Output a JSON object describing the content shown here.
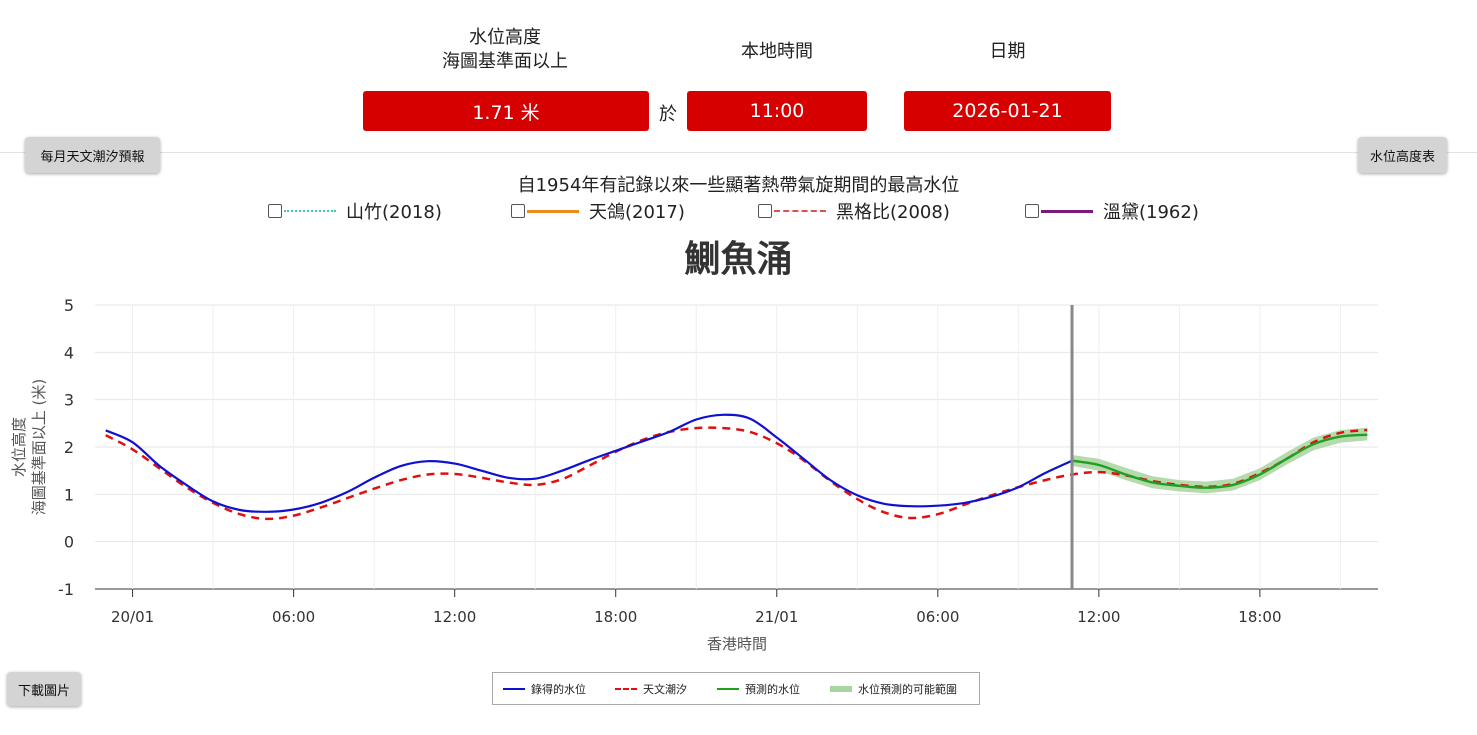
{
  "header": {
    "level_label_1": "水位高度",
    "level_label_2": "海圖基準面以上",
    "time_label": "本地時間",
    "date_label": "日期",
    "level_value": "1.71 米",
    "at": "於",
    "time_value": "11:00",
    "date_value": "2026-01-21"
  },
  "buttons": {
    "monthly": "每月天文潮汐預報",
    "table": "水位高度表",
    "download": "下載圖片"
  },
  "historical": {
    "title": "自1954年有記錄以來一些顯著熱帶氣旋期間的最高水位",
    "items": [
      {
        "label": "山竹(2018)",
        "color": "#40c4d0",
        "dash": "dotted"
      },
      {
        "label": "天鴿(2017)",
        "color": "#f08a1c",
        "dash": "solid"
      },
      {
        "label": "黑格比(2008)",
        "color": "#d9534f",
        "dash": "dashed"
      },
      {
        "label": "溫黛(1962)",
        "color": "#7a1a7a",
        "dash": "solid"
      }
    ]
  },
  "chart_data": {
    "type": "line",
    "title": "鰂魚涌",
    "xlabel": "香港時間",
    "ylabel_1": "水位高度",
    "ylabel_2": "海圖基準面以上 (米)",
    "ylim": [
      -1,
      5
    ],
    "xlim_hours": [
      -1.4,
      46.4
    ],
    "yticks": [
      -1,
      0,
      1,
      2,
      3,
      4,
      5
    ],
    "xticks": [
      {
        "h": 0,
        "label": "20/01"
      },
      {
        "h": 6,
        "label": "06:00"
      },
      {
        "h": 12,
        "label": "12:00"
      },
      {
        "h": 18,
        "label": "18:00"
      },
      {
        "h": 24,
        "label": "21/01"
      },
      {
        "h": 30,
        "label": "06:00"
      },
      {
        "h": 36,
        "label": "12:00"
      },
      {
        "h": 42,
        "label": "18:00"
      }
    ],
    "current_hour": 35,
    "legend": [
      "錄得的水位",
      "天文潮汐",
      "預測的水位",
      "水位預測的可能範圍"
    ],
    "colors": {
      "recorded": "#1010d0",
      "tide": "#e01010",
      "forecast": "#1fa01f",
      "range": "#a8d4a0"
    },
    "series": [
      {
        "name": "錄得的水位",
        "x": [
          -1,
          0,
          1,
          2,
          3,
          4,
          5,
          6,
          7,
          8,
          9,
          10,
          11,
          12,
          13,
          14,
          15,
          16,
          17,
          18,
          19,
          20,
          21,
          22,
          23,
          24,
          25,
          26,
          27,
          28,
          29,
          30,
          31,
          32,
          33,
          34,
          35
        ],
        "y": [
          2.35,
          2.1,
          1.6,
          1.2,
          0.85,
          0.67,
          0.63,
          0.68,
          0.82,
          1.05,
          1.35,
          1.6,
          1.7,
          1.65,
          1.5,
          1.35,
          1.33,
          1.5,
          1.72,
          1.92,
          2.12,
          2.32,
          2.58,
          2.68,
          2.6,
          2.2,
          1.75,
          1.3,
          0.98,
          0.8,
          0.75,
          0.76,
          0.82,
          0.95,
          1.15,
          1.45,
          1.71
        ]
      },
      {
        "name": "天文潮汐",
        "x": [
          -1,
          0,
          1,
          2,
          3,
          4,
          5,
          6,
          7,
          8,
          9,
          10,
          11,
          12,
          13,
          14,
          15,
          16,
          17,
          18,
          19,
          20,
          21,
          22,
          23,
          24,
          25,
          26,
          27,
          28,
          29,
          30,
          31,
          32,
          33,
          34,
          35,
          36,
          37,
          38,
          39,
          40,
          41,
          42,
          43,
          44,
          45,
          46
        ],
        "y": [
          2.25,
          1.95,
          1.55,
          1.15,
          0.82,
          0.58,
          0.48,
          0.55,
          0.72,
          0.92,
          1.12,
          1.3,
          1.42,
          1.43,
          1.35,
          1.25,
          1.2,
          1.32,
          1.6,
          1.9,
          2.15,
          2.32,
          2.4,
          2.4,
          2.32,
          2.08,
          1.72,
          1.28,
          0.9,
          0.62,
          0.5,
          0.58,
          0.78,
          0.98,
          1.15,
          1.3,
          1.42,
          1.47,
          1.4,
          1.28,
          1.2,
          1.16,
          1.22,
          1.45,
          1.75,
          2.1,
          2.3,
          2.36
        ]
      },
      {
        "name": "預測的水位",
        "x": [
          35,
          36,
          37,
          38,
          39,
          40,
          41,
          42,
          43,
          44,
          45,
          46
        ],
        "y": [
          1.71,
          1.62,
          1.42,
          1.25,
          1.18,
          1.14,
          1.2,
          1.42,
          1.75,
          2.06,
          2.22,
          2.26
        ]
      }
    ],
    "range": {
      "x": [
        35,
        36,
        37,
        38,
        39,
        40,
        41,
        42,
        43,
        44,
        45,
        46
      ],
      "low": [
        1.6,
        1.5,
        1.3,
        1.13,
        1.06,
        1.02,
        1.08,
        1.3,
        1.63,
        1.93,
        2.09,
        2.14
      ],
      "high": [
        1.83,
        1.75,
        1.56,
        1.38,
        1.3,
        1.27,
        1.33,
        1.55,
        1.89,
        2.2,
        2.36,
        2.41
      ]
    }
  }
}
